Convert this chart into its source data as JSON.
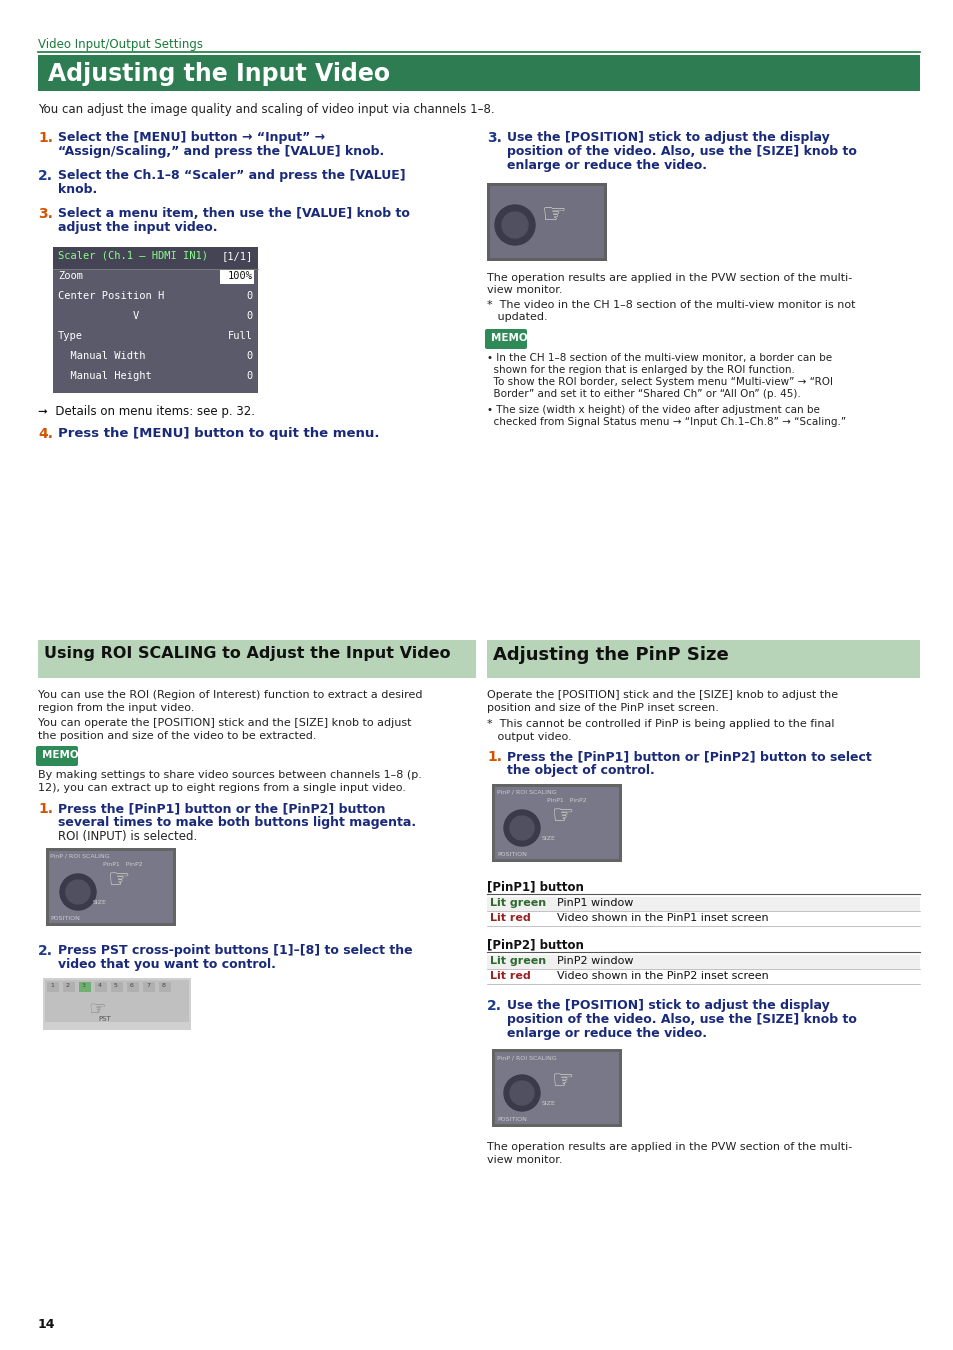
{
  "page_bg": "#ffffff",
  "header_text": "Video Input/Output Settings",
  "header_color": "#1a7a3a",
  "header_line_color": "#1a7a3a",
  "section1_title": "Adjusting the Input Video",
  "section1_bg": "#2e7d52",
  "section1_title_color": "#ffffff",
  "section1_intro": "You can adjust the image quality and scaling of video input via channels 1–8.",
  "s1_step1_num": "1.",
  "s1_step1_num_color": "#d35400",
  "s1_step1_line1": "Select the [MENU] button → “Input” →",
  "s1_step1_line2": "“Assign/Scaling,” and press the [VALUE] knob.",
  "s1_step2_num": "2.",
  "s1_step2_num_color": "#1a3a8a",
  "s1_step2_line1": "Select the Ch.1–8 “Scaler” and press the [VALUE]",
  "s1_step2_line2": "knob.",
  "s1_step3_num": "3.",
  "s1_step3_num_color": "#d35400",
  "s1_step3_line1": "Select a menu item, then use the [VALUE] knob to",
  "s1_step3_line2": "adjust the input video.",
  "s1r_step3_num": "3.",
  "s1r_step3_num_color": "#1a3a8a",
  "s1r_step3_line1": "Use the [POSITION] stick to adjust the display",
  "s1r_step3_line2": "position of the video. Also, use the [SIZE] knob to",
  "s1r_step3_line3": "enlarge or reduce the video.",
  "details_text": "➞  Details on menu items: see p. 32.",
  "s1_step4_num": "4.",
  "s1_step4_num_color": "#d35400",
  "s1_step4_text": "Press the [MENU] button to quit the menu.",
  "right_note1": "The operation results are applied in the PVW section of the multi-",
  "right_note1b": "view monitor.",
  "right_note2": "*  The video in the CH 1–8 section of the multi-view monitor is not",
  "right_note2b": "   updated.",
  "memo_label": "MEMO",
  "memo_bg": "#2e8b57",
  "memo_text_color": "#ffffff",
  "memo1_line1": "• In the CH 1–8 section of the multi-view monitor, a border can be",
  "memo1_line2": "  shown for the region that is enlarged by the ROI function.",
  "memo1_line3": "  To show the ROI border, select System menu “Multi-view” → “ROI",
  "memo1_line4": "  Border” and set it to either “Shared Ch” or “All On” (p. 45).",
  "memo2_line1": "• The size (width x height) of the video after adjustment can be",
  "memo2_line2": "  checked from Signal Status menu → “Input Ch.1–Ch.8” → “Scaling.”",
  "scaler_menu_bg": "#5a5a6a",
  "scaler_header_bg": "#444455",
  "scaler_header_text_color": "#88ff88",
  "scaler_value_color": "#ffffff",
  "scaler_line0": "Scaler (Ch.1 – HDMI IN1)",
  "scaler_line0r": "[1/1]",
  "scaler_line1l": "Zoom",
  "scaler_line1r": "100%",
  "scaler_line2l": "Center Position H",
  "scaler_line2r": "0",
  "scaler_line3l": "            V",
  "scaler_line3r": "0",
  "scaler_line4l": "Type",
  "scaler_line4r": "Full",
  "scaler_line5l": "  Manual Width",
  "scaler_line5r": "0",
  "scaler_line6l": "  Manual Height",
  "scaler_line6r": "0",
  "section2_title": "Using ROI SCALING to Adjust the Input Video",
  "section2_bg": "#b8d4b8",
  "section2_title_color": "#111111",
  "section3_title": "Adjusting the PinP Size",
  "section3_bg": "#b8d4b8",
  "section3_title_color": "#111111",
  "s2_intro1": "You can use the ROI (Region of Interest) function to extract a desired",
  "s2_intro1b": "region from the input video.",
  "s2_intro2": "You can operate the [POSITION] stick and the [SIZE] knob to adjust",
  "s2_intro2b": "the position and size of the video to be extracted.",
  "memo2_label": "MEMO",
  "memo2_text1": "By making settings to share video sources between channels 1–8 (p.",
  "memo2_text2": "12), you can extract up to eight regions from a single input video.",
  "s2_step1_num": "1.",
  "s2_step1_num_color": "#d35400",
  "s2_step1_line1": "Press the [PinP1] button or the [PinP2] button",
  "s2_step1_line2": "several times to make both buttons light magenta.",
  "s2_step1_line3": "ROI (INPUT) is selected.",
  "s2_step2_num": "2.",
  "s2_step2_num_color": "#1a3a8a",
  "s2_step2_line1": "Press PST cross-point buttons [1]–[8] to select the",
  "s2_step2_line2": "video that you want to control.",
  "s3_intro1": "Operate the [POSITION] stick and the [SIZE] knob to adjust the",
  "s3_intro1b": "position and size of the PinP inset screen.",
  "s3_note": "*  This cannot be controlled if PinP is being applied to the final",
  "s3_noteb": "   output video.",
  "s3_step1_num": "1.",
  "s3_step1_num_color": "#d35400",
  "s3_step1_line1": "Press the [PinP1] button or [PinP2] button to select",
  "s3_step1_line2": "the object of control.",
  "pinp1_label": "[PinP1] button",
  "pinp1_row1_c1": "Lit green",
  "pinp1_row1_c1_color": "#2d6a2d",
  "pinp1_row1_c2": "PinP1 window",
  "pinp1_row2_c1": "Lit red",
  "pinp1_row2_c1_color": "#992222",
  "pinp1_row2_c2": "Video shown in the PinP1 inset screen",
  "pinp2_label": "[PinP2] button",
  "pinp2_row1_c1": "Lit green",
  "pinp2_row1_c1_color": "#2d6a2d",
  "pinp2_row1_c2": "PinP2 window",
  "pinp2_row2_c1": "Lit red",
  "pinp2_row2_c1_color": "#992222",
  "pinp2_row2_c2": "Video shown in the PinP2 inset screen",
  "s3_step2_num": "2.",
  "s3_step2_num_color": "#1a3a8a",
  "s3_step2_line1": "Use the [POSITION] stick to adjust the display",
  "s3_step2_line2": "position of the video. Also, use the [SIZE] knob to",
  "s3_step2_line3": "enlarge or reduce the video.",
  "s3_final_note": "The operation results are applied in the PVW section of the multi-",
  "s3_final_noteb": "view monitor.",
  "page_num": "14"
}
